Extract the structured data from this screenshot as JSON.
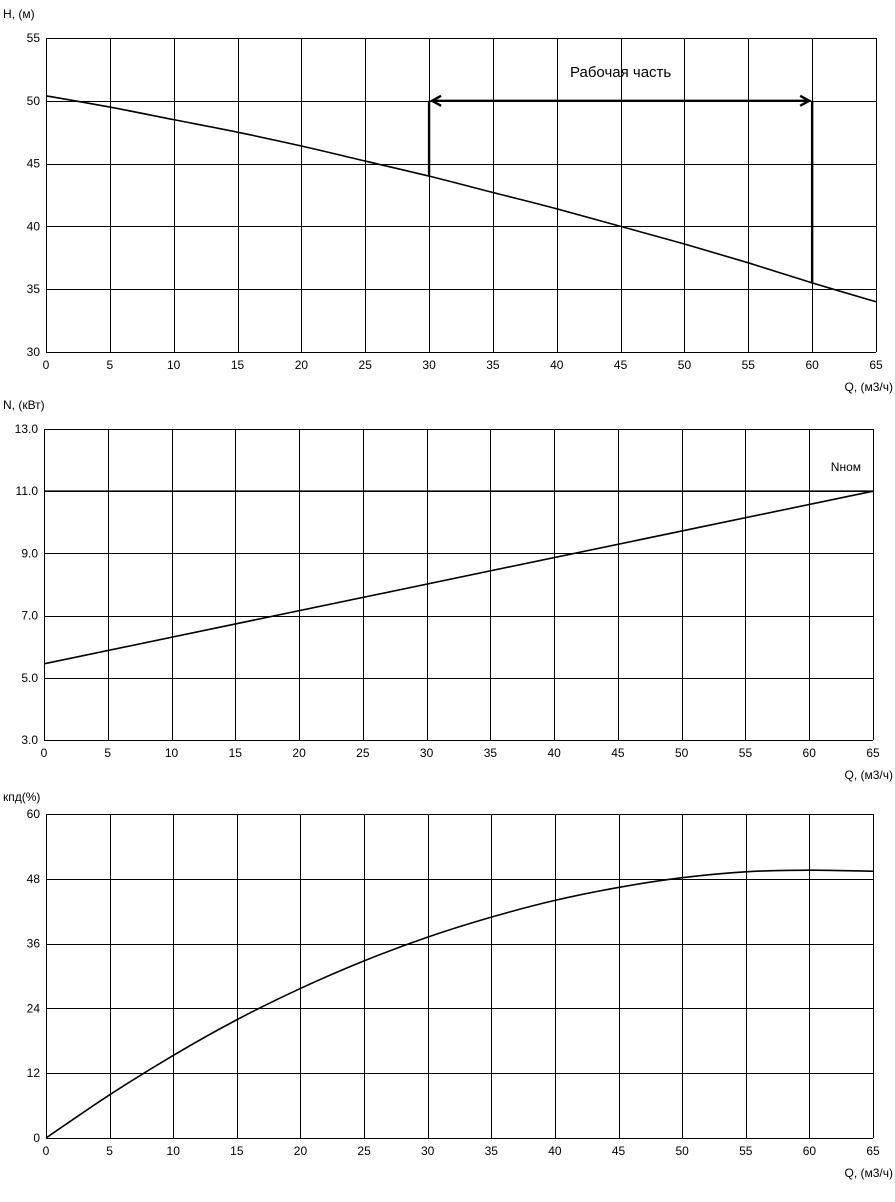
{
  "chart_data": [
    {
      "type": "line",
      "ylabel": "H, (м)",
      "xlabel": "Q, (м3/ч)",
      "xlim": [
        0,
        65
      ],
      "ylim": [
        30,
        55
      ],
      "xticks": [
        0,
        5,
        10,
        15,
        20,
        25,
        30,
        35,
        40,
        45,
        50,
        55,
        60,
        65
      ],
      "xtick_labels": [
        "0",
        "5",
        "10",
        "15",
        "20",
        "25",
        "30",
        "35",
        "40",
        "45",
        "50",
        "55",
        "60",
        "65"
      ],
      "yticks": [
        30,
        35,
        40,
        45,
        50,
        55
      ],
      "ytick_labels": [
        "30",
        "35",
        "40",
        "45",
        "50",
        "55"
      ],
      "grid": true,
      "series": [
        {
          "x": [
            0,
            5,
            10,
            15,
            20,
            25,
            30,
            35,
            40,
            45,
            50,
            55,
            60,
            65
          ],
          "y": [
            50.4,
            49.5,
            48.5,
            47.5,
            46.4,
            45.2,
            44.0,
            42.7,
            41.4,
            40.0,
            38.6,
            37.1,
            35.5,
            34.0
          ]
        }
      ],
      "annotation": {
        "text": "Рабочая часть",
        "q_start": 30,
        "q_end": 60,
        "level": 50,
        "h_at_start": 44.0,
        "h_at_end": 35.5
      }
    },
    {
      "type": "line",
      "ylabel": "N, (кВт)",
      "xlabel": "Q, (м3/ч)",
      "xlim": [
        0,
        65
      ],
      "ylim": [
        3,
        13
      ],
      "xticks": [
        0,
        5,
        10,
        15,
        20,
        25,
        30,
        35,
        40,
        45,
        50,
        55,
        60,
        65
      ],
      "xtick_labels": [
        "0",
        "5",
        "10",
        "15",
        "20",
        "25",
        "30",
        "35",
        "40",
        "45",
        "50",
        "55",
        "60",
        "65"
      ],
      "yticks": [
        3,
        5,
        7,
        9,
        11,
        13
      ],
      "ytick_labels": [
        "3.0",
        "5.0",
        "7.0",
        "9.0",
        "11.0",
        "13.0"
      ],
      "grid": true,
      "series": [
        {
          "x": [
            0,
            65
          ],
          "y": [
            5.45,
            11.0
          ]
        },
        {
          "name": "Nном",
          "x": [
            0,
            65
          ],
          "y": [
            11.0,
            11.0
          ]
        }
      ]
    },
    {
      "type": "line",
      "ylabel": "кпд(%)",
      "xlabel": "Q, (м3/ч)",
      "xlim": [
        0,
        65
      ],
      "ylim": [
        0,
        60
      ],
      "xticks": [
        0,
        5,
        10,
        15,
        20,
        25,
        30,
        35,
        40,
        45,
        50,
        55,
        60,
        65
      ],
      "xtick_labels": [
        "0",
        "5",
        "10",
        "15",
        "20",
        "25",
        "30",
        "35",
        "40",
        "45",
        "50",
        "55",
        "60",
        "65"
      ],
      "yticks": [
        0,
        12,
        24,
        36,
        48,
        60
      ],
      "ytick_labels": [
        "0",
        "12",
        "24",
        "36",
        "48",
        "60"
      ],
      "grid": true,
      "series": [
        {
          "x": [
            0,
            5,
            10,
            15,
            20,
            25,
            30,
            35,
            40,
            45,
            50,
            55,
            60,
            65
          ],
          "y": [
            0,
            8.0,
            15.3,
            21.9,
            27.7,
            32.8,
            37.2,
            40.9,
            44.0,
            46.4,
            48.2,
            49.3,
            49.6,
            49.4
          ]
        }
      ]
    }
  ]
}
